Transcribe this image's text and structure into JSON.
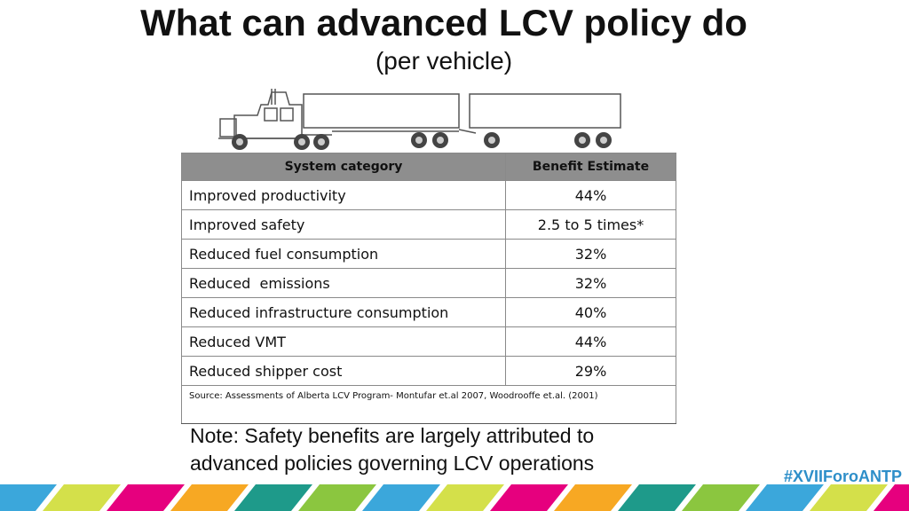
{
  "slide": {
    "title": "What can advanced LCV policy do",
    "subtitle": "(per vehicle)"
  },
  "table": {
    "headers": [
      "System category",
      "Benefit Estimate"
    ],
    "rows": [
      {
        "category": "Improved productivity",
        "value": "44%"
      },
      {
        "category": "Improved safety",
        "value": "2.5 to 5 times*"
      },
      {
        "category": "Reduced fuel consumption",
        "value": "32%"
      },
      {
        "category": "Reduced  emissions",
        "value": "32%"
      },
      {
        "category": "Reduced infrastructure consumption",
        "value": "40%"
      },
      {
        "category": "Reduced VMT",
        "value": "44%"
      },
      {
        "category": "Reduced shipper cost",
        "value": "29%"
      }
    ],
    "source": "Source: Assessments of Alberta LCV Program- Montufar et.al 2007, Woodrooffe et.al. (2001)"
  },
  "note": {
    "line1": "Note: Safety benefits are largely attributed to",
    "line2": "advanced policies governing LCV operations"
  },
  "footer": {
    "hashtag": "#XVIIForoANTP"
  },
  "illustration": {
    "icon": "lcv-truck-double-trailer-icon"
  },
  "colors": {
    "header_bg": "#8e8e8e",
    "hashtag": "#2e8fc9",
    "stripes": [
      "#3ba7db",
      "#d4e04a",
      "#e6007e",
      "#f7a823",
      "#1e9a8a",
      "#8bc63f"
    ]
  }
}
